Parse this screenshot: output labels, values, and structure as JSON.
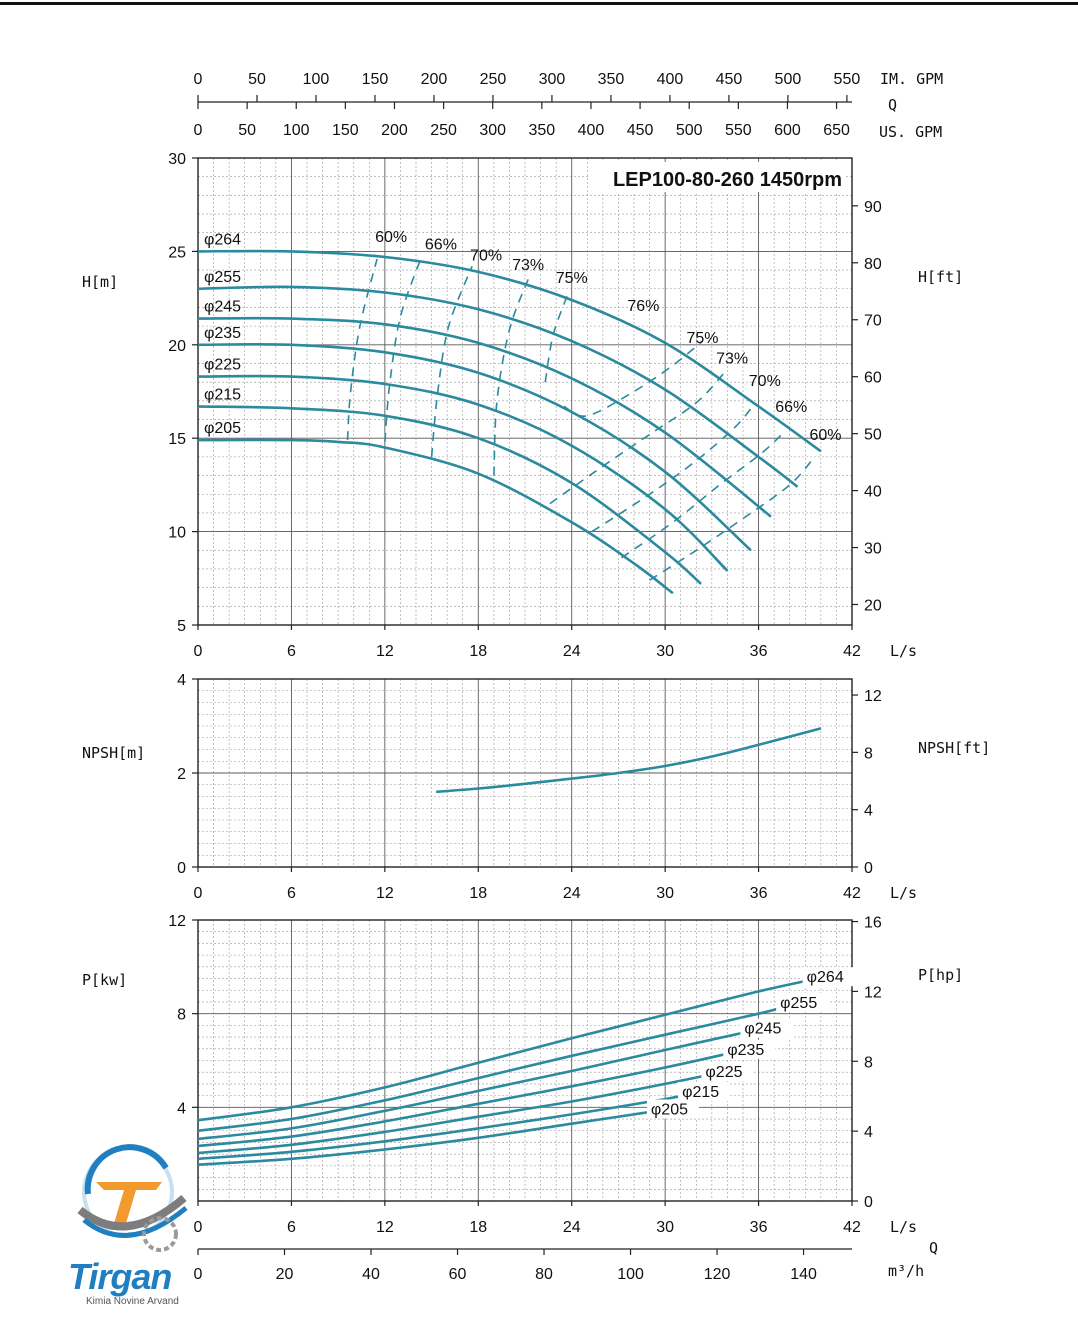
{
  "colors": {
    "curve": "#2b8a9e",
    "logo_blue": "#1f7fc0",
    "logo_orange": "#f29a2e",
    "logo_gray": "#7d7d7d"
  },
  "logo": {
    "word": "Tirgan",
    "subtitle": "Kimia Novine Arvand"
  },
  "chart_data": [
    {
      "type": "line",
      "title": "LEP100-80-260 1450rpm",
      "xlabel": "L/s",
      "ylabel": "H[m]",
      "ylabel_right": "H[ft]",
      "xlim": [
        0,
        42
      ],
      "ylim": [
        5,
        30
      ],
      "ylim_right": [
        16.4,
        98.4
      ],
      "x_ticks": [
        0,
        6,
        12,
        18,
        24,
        30,
        36,
        42
      ],
      "y_ticks": [
        5,
        10,
        15,
        20,
        25,
        30
      ],
      "y_ticks_right": [
        20,
        30,
        40,
        50,
        60,
        70,
        80,
        90
      ],
      "grid": true,
      "top_axes": {
        "q_label": "Q",
        "im_gpm_label": "IM. GPM",
        "us_gpm_label": "US. GPM",
        "im_gpm_ticks": [
          0,
          50,
          100,
          150,
          200,
          250,
          300,
          350,
          400,
          450,
          500,
          550
        ],
        "us_gpm_ticks": [
          0,
          50,
          100,
          150,
          200,
          250,
          300,
          350,
          400,
          450,
          500,
          550,
          600,
          650
        ]
      },
      "series": [
        {
          "name": "φ264",
          "x": [
            0,
            6,
            12,
            18,
            24,
            30,
            36,
            40
          ],
          "y": [
            25.0,
            25.0,
            24.7,
            23.9,
            22.4,
            20.1,
            16.7,
            14.3
          ]
        },
        {
          "name": "φ255",
          "x": [
            0,
            6,
            12,
            18,
            24,
            30,
            36,
            38.5
          ],
          "y": [
            23.0,
            23.1,
            22.8,
            21.9,
            20.2,
            17.6,
            14.0,
            12.4
          ]
        },
        {
          "name": "φ245",
          "x": [
            0,
            6,
            12,
            18,
            24,
            30,
            36.8
          ],
          "y": [
            21.4,
            21.4,
            21.1,
            20.1,
            18.2,
            15.3,
            10.8
          ]
        },
        {
          "name": "φ235",
          "x": [
            0,
            6,
            12,
            18,
            24,
            30,
            35.5
          ],
          "y": [
            20.0,
            20.0,
            19.6,
            18.5,
            16.4,
            13.2,
            9.0
          ]
        },
        {
          "name": "φ225",
          "x": [
            0,
            6,
            12,
            18,
            24,
            30,
            34.0
          ],
          "y": [
            18.3,
            18.3,
            17.9,
            16.8,
            14.6,
            11.2,
            7.9
          ]
        },
        {
          "name": "φ215",
          "x": [
            0,
            6,
            12,
            18,
            24,
            30,
            32.3
          ],
          "y": [
            16.7,
            16.6,
            16.2,
            15.0,
            12.6,
            8.9,
            7.2
          ]
        },
        {
          "name": "φ205",
          "x": [
            0,
            6,
            9,
            12,
            18,
            24,
            28,
            30.5
          ],
          "y": [
            14.9,
            14.9,
            14.8,
            14.5,
            13.1,
            10.5,
            8.3,
            6.7
          ]
        }
      ],
      "efficiency_lines": [
        {
          "label": "60%",
          "x": [
            9.6,
            9.8,
            10.4,
            11.5
          ],
          "y": [
            14.9,
            17.5,
            21.0,
            24.6
          ]
        },
        {
          "label": "66%",
          "x": [
            12.0,
            12.3,
            13.0,
            14.4
          ],
          "y": [
            14.8,
            17.8,
            21.5,
            24.8
          ]
        },
        {
          "label": "70%",
          "x": [
            15.0,
            15.4,
            16.1,
            17.6
          ],
          "y": [
            14.0,
            17.5,
            21.0,
            24.2
          ]
        },
        {
          "label": "73%",
          "x": [
            19.0,
            19.2,
            20.0,
            21.2
          ],
          "y": [
            13.0,
            17.0,
            20.8,
            23.5
          ]
        },
        {
          "label": "75%",
          "x": [
            22.3,
            22.8,
            23.7
          ],
          "y": [
            18.0,
            20.5,
            22.6
          ]
        },
        {
          "label": "75%",
          "x": [
            23.5,
            25.0,
            28.0,
            30.5,
            32.4
          ],
          "y": [
            16.7,
            16.2,
            17.5,
            18.9,
            20.2
          ]
        },
        {
          "label": "73%",
          "x": [
            22.6,
            26.0,
            29.0,
            32.0,
            33.8
          ],
          "y": [
            11.5,
            13.5,
            15.2,
            16.9,
            18.5
          ]
        },
        {
          "label": "70%",
          "x": [
            25.3,
            29.0,
            32.0,
            34.5,
            35.7
          ],
          "y": [
            10.0,
            12.0,
            13.8,
            15.6,
            16.8
          ]
        },
        {
          "label": "66%",
          "x": [
            27.2,
            30.5,
            33.5,
            36.2,
            37.6
          ],
          "y": [
            8.6,
            10.5,
            12.5,
            14.2,
            15.3
          ]
        },
        {
          "label": "60%",
          "x": [
            29.0,
            32.0,
            35.0,
            38.0,
            39.6
          ],
          "y": [
            7.4,
            9.0,
            10.7,
            12.5,
            14.0
          ]
        }
      ],
      "efficiency_labels": [
        "60%",
        "66%",
        "70%",
        "73%",
        "75%",
        "76%",
        "75%",
        "73%",
        "70%",
        "66%",
        "60%"
      ]
    },
    {
      "type": "line",
      "xlabel": "L/s",
      "ylabel": "NPSH[m]",
      "ylabel_right": "NPSH[ft]",
      "xlim": [
        0,
        42
      ],
      "ylim": [
        0,
        4
      ],
      "x_ticks": [
        0,
        6,
        12,
        18,
        24,
        30,
        36,
        42
      ],
      "y_ticks": [
        0,
        2,
        4
      ],
      "y_ticks_right": [
        0,
        4,
        8,
        12
      ],
      "grid": true,
      "series": [
        {
          "x": [
            15.3,
            18,
            21,
            24,
            27,
            30,
            33,
            36,
            40
          ],
          "y": [
            1.6,
            1.67,
            1.77,
            1.88,
            2.0,
            2.15,
            2.35,
            2.6,
            2.95
          ]
        }
      ]
    },
    {
      "type": "line",
      "xlabel": "L/s",
      "ylabel": "P[kw]",
      "ylabel_right": "P[hp]",
      "xlim": [
        0,
        42
      ],
      "ylim": [
        0,
        12
      ],
      "x_ticks": [
        0,
        6,
        12,
        18,
        24,
        30,
        36,
        42
      ],
      "y_ticks": [
        4,
        8,
        12
      ],
      "y_ticks_right": [
        0,
        4,
        8,
        12,
        16
      ],
      "grid": true,
      "bottom_axis": {
        "label": "m³/h",
        "q_label": "Q",
        "ticks": [
          0,
          20,
          40,
          60,
          80,
          100,
          120,
          140
        ]
      },
      "series": [
        {
          "name": "φ264",
          "x": [
            0,
            6,
            12,
            18,
            24,
            30,
            36,
            40.5
          ],
          "y": [
            3.45,
            4.0,
            4.85,
            5.9,
            6.95,
            7.95,
            8.95,
            9.6
          ]
        },
        {
          "name": "φ255",
          "x": [
            0,
            6,
            12,
            18,
            24,
            30,
            36,
            38.8
          ],
          "y": [
            3.0,
            3.5,
            4.3,
            5.25,
            6.2,
            7.1,
            8.0,
            8.5
          ]
        },
        {
          "name": "φ245",
          "x": [
            0,
            6,
            12,
            18,
            24,
            30,
            36.5
          ],
          "y": [
            2.65,
            3.1,
            3.85,
            4.7,
            5.55,
            6.45,
            7.4
          ]
        },
        {
          "name": "φ235",
          "x": [
            0,
            6,
            12,
            18,
            24,
            30,
            35.4
          ],
          "y": [
            2.35,
            2.75,
            3.4,
            4.15,
            4.9,
            5.7,
            6.5
          ]
        },
        {
          "name": "φ225",
          "x": [
            0,
            6,
            12,
            18,
            24,
            30,
            34.0
          ],
          "y": [
            2.05,
            2.4,
            2.95,
            3.6,
            4.25,
            5.0,
            5.55
          ]
        },
        {
          "name": "φ215",
          "x": [
            0,
            6,
            12,
            18,
            24,
            30,
            32.5
          ],
          "y": [
            1.8,
            2.1,
            2.55,
            3.1,
            3.7,
            4.35,
            4.7
          ]
        },
        {
          "name": "φ205",
          "x": [
            0,
            6,
            12,
            18,
            24,
            30.5
          ],
          "y": [
            1.55,
            1.8,
            2.2,
            2.7,
            3.3,
            3.95
          ]
        }
      ]
    }
  ]
}
